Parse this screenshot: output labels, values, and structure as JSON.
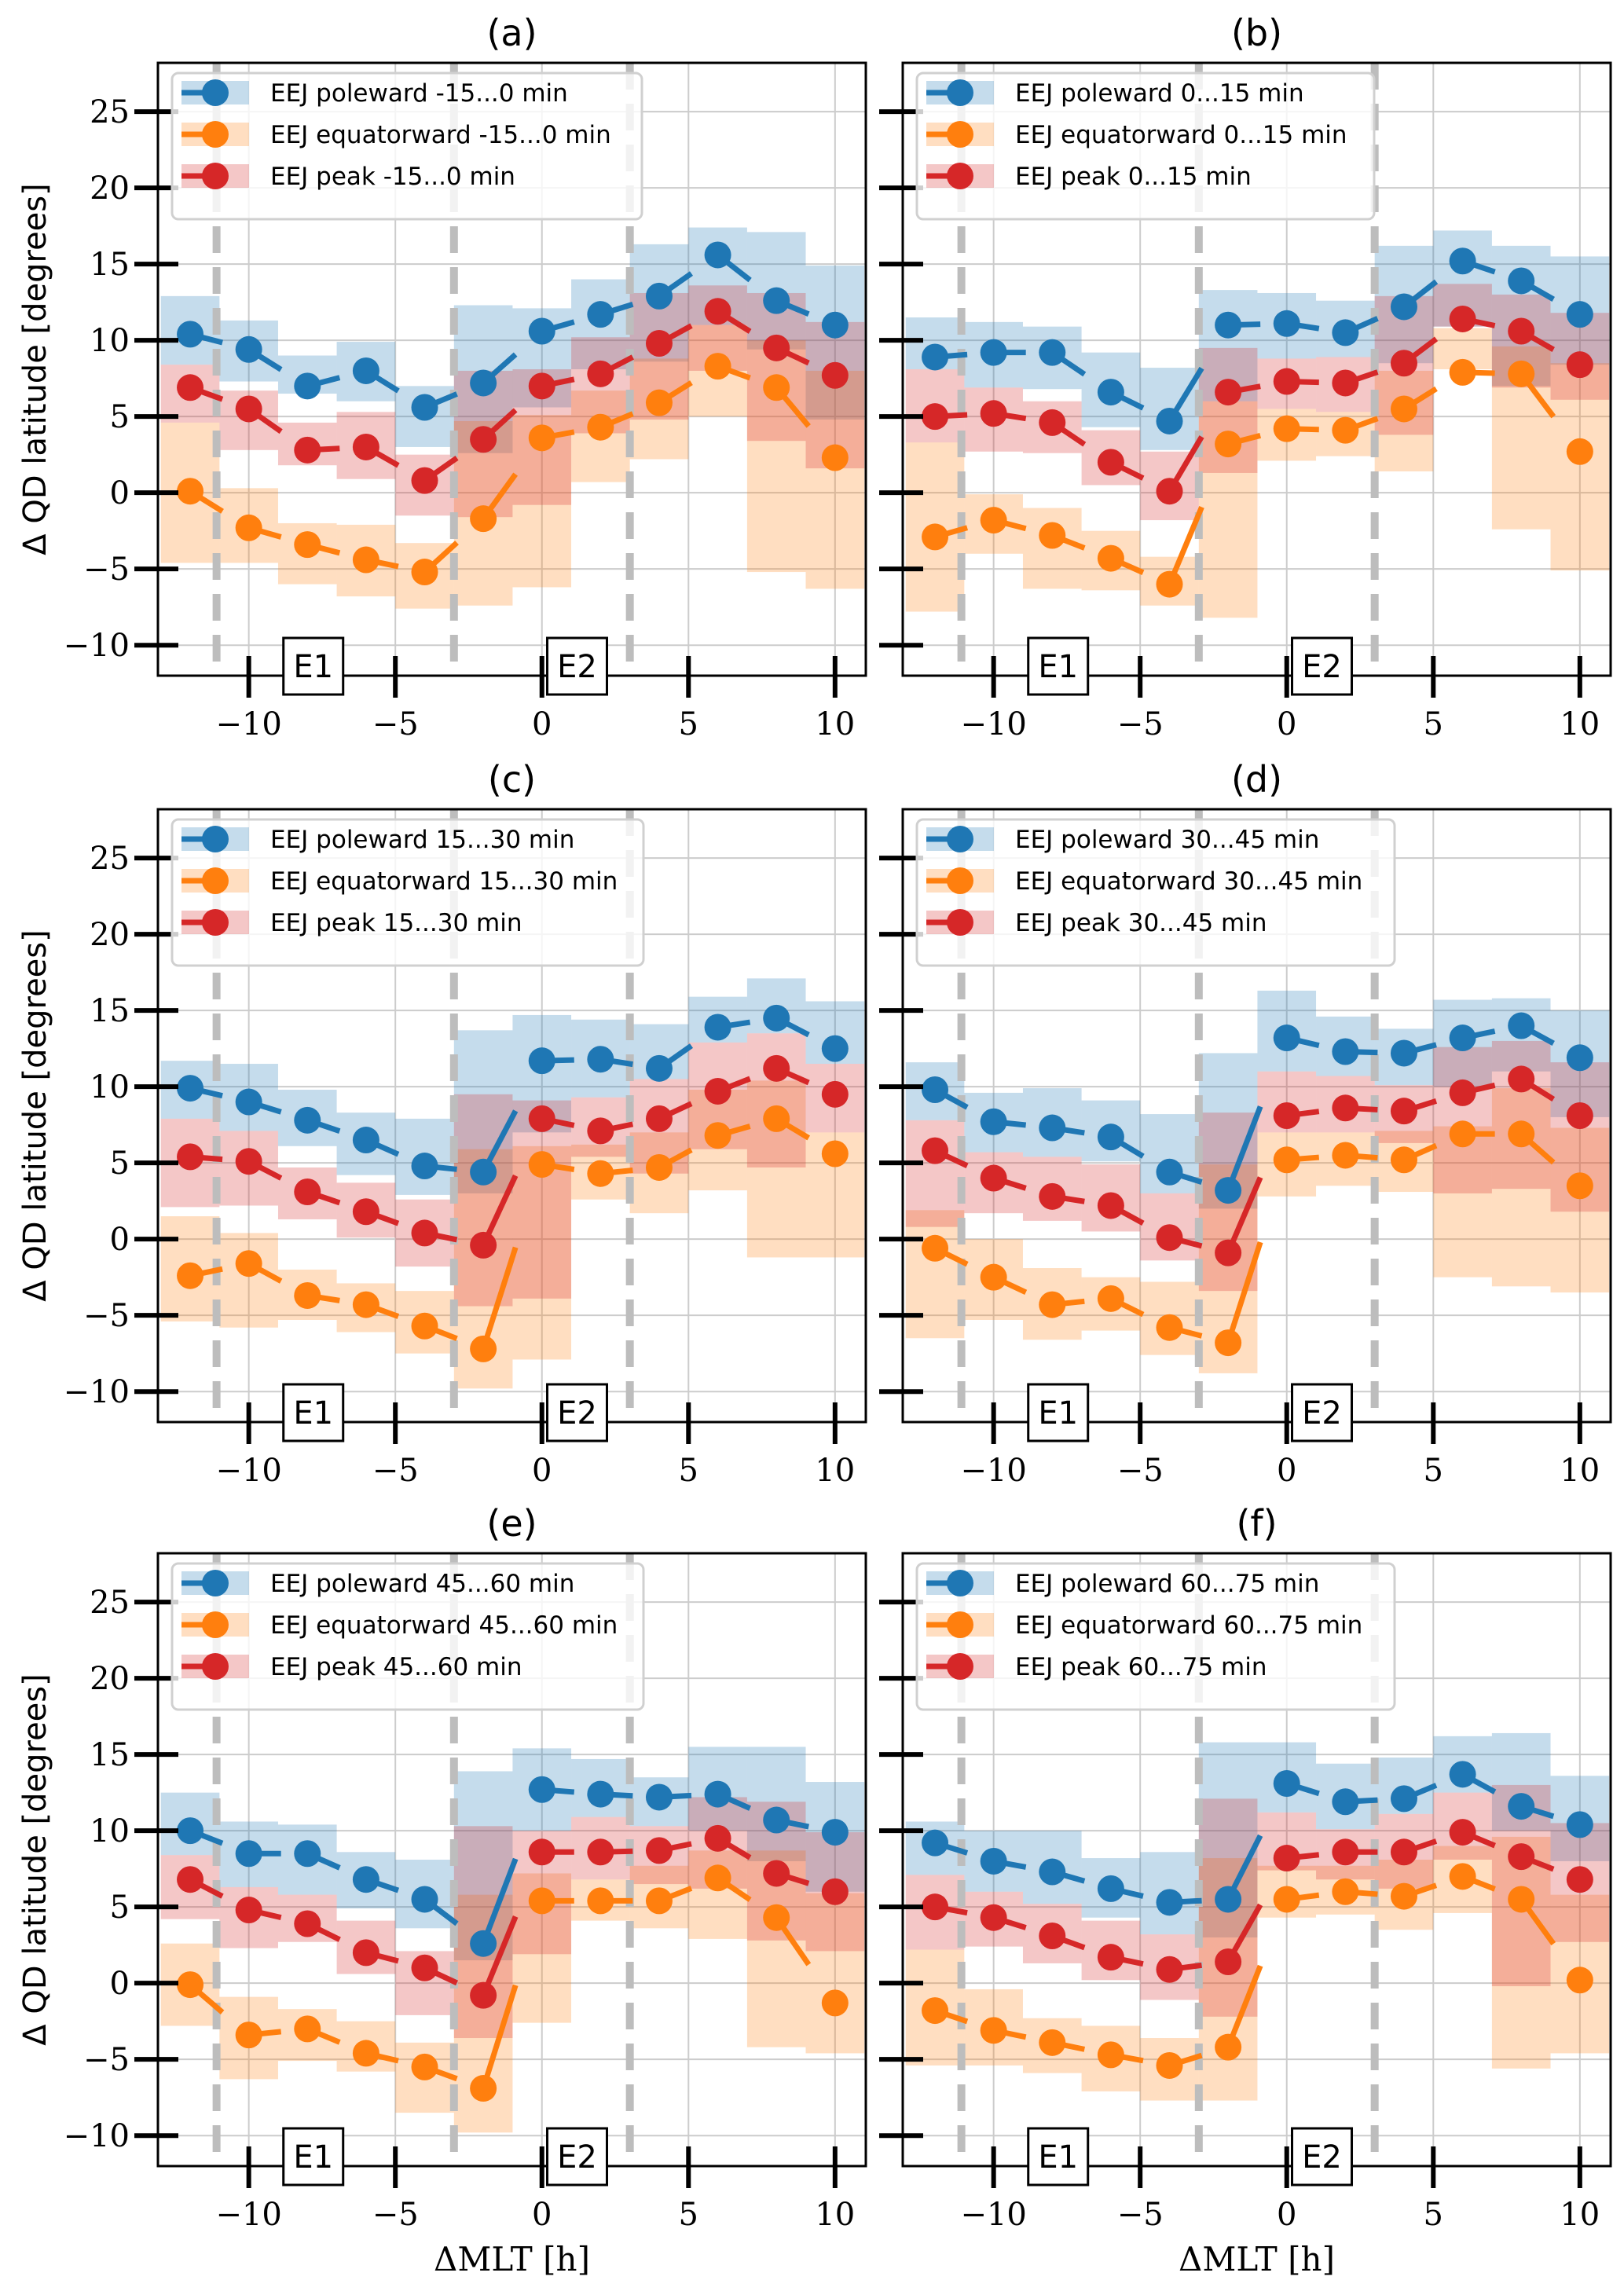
{
  "figure": {
    "xlabel": "ΔMLT [h]",
    "ylabel": "Δ QD latitude [degrees]",
    "x_tick_values": [
      -10,
      -5,
      0,
      5,
      10
    ],
    "x_tick_labels": [
      "−10",
      "−5",
      "0",
      "5",
      "10"
    ],
    "y_tick_values": [
      25,
      20,
      15,
      10,
      5,
      0,
      -5,
      -10
    ],
    "y_tick_labels": [
      "25",
      "20",
      "15",
      "10",
      "5",
      "0",
      "−5",
      "−10"
    ],
    "xlim": [
      -13.1,
      11.05
    ],
    "ylim": [
      -12,
      28.2
    ],
    "boundary_lines_x": [
      -11.1,
      -3,
      3
    ],
    "annotations": [
      {
        "text": "E1",
        "x": -7.8
      },
      {
        "text": "E2",
        "x": 1.2
      }
    ]
  },
  "colors": {
    "poleward": "#1f77b4",
    "equatorward": "#ff7f0e",
    "peak": "#d62728",
    "boundary_line": "#bdbdbd",
    "grid": "#cccccc"
  },
  "chart_data": [
    {
      "type": "line",
      "title": "(a)",
      "x": [
        -12,
        -10,
        -8,
        -6,
        -4,
        -2,
        0,
        2,
        4,
        6,
        8,
        10
      ],
      "series": [
        {
          "name": "EEJ poleward -15...0 min",
          "color": "#1f77b4",
          "values": [
            10.4,
            9.4,
            7.0,
            8.0,
            5.6,
            7.2,
            10.6,
            11.7,
            12.9,
            15.6,
            12.6,
            11.0
          ],
          "upper": [
            12.9,
            11.3,
            9.0,
            9.9,
            7.0,
            12.3,
            12.1,
            14.0,
            16.3,
            17.4,
            17.1,
            14.9
          ],
          "lower": [
            8.4,
            7.3,
            6.5,
            6.0,
            3.0,
            2.6,
            5.6,
            8.1,
            8.6,
            11.0,
            9.4,
            4.8
          ]
        },
        {
          "name": "EEJ equatorward -15...0 min",
          "color": "#ff7f0e",
          "values": [
            0.1,
            -2.3,
            -3.4,
            -4.4,
            -5.2,
            -1.7,
            3.6,
            4.3,
            5.9,
            8.3,
            6.9,
            2.3
          ],
          "upper": [
            4.6,
            0.3,
            -2.0,
            -2.1,
            -3.3,
            4.7,
            5.1,
            6.7,
            8.8,
            11.0,
            10.0,
            8.0
          ],
          "lower": [
            -4.6,
            -4.6,
            -6.0,
            -6.8,
            -7.6,
            -7.4,
            -6.2,
            0.7,
            2.2,
            5.0,
            -5.2,
            -6.3
          ]
        },
        {
          "name": "EEJ peak -15...0 min",
          "color": "#d62728",
          "values": [
            6.9,
            5.5,
            2.8,
            3.0,
            0.8,
            3.5,
            7.0,
            7.8,
            9.8,
            11.9,
            9.5,
            7.7
          ],
          "upper": [
            8.4,
            6.7,
            4.6,
            5.3,
            2.5,
            8.0,
            8.1,
            10.2,
            13.1,
            13.6,
            13.1,
            11.2
          ],
          "lower": [
            4.6,
            2.8,
            1.8,
            0.9,
            -1.5,
            -1.6,
            -0.8,
            3.9,
            4.8,
            8.0,
            3.4,
            1.6
          ]
        }
      ]
    },
    {
      "type": "line",
      "title": "(b)",
      "x": [
        -12,
        -10,
        -8,
        -6,
        -4,
        -2,
        0,
        2,
        4,
        6,
        8,
        10
      ],
      "series": [
        {
          "name": "EEJ poleward 0...15 min",
          "color": "#1f77b4",
          "values": [
            8.9,
            9.2,
            9.2,
            6.6,
            4.7,
            11.0,
            11.1,
            10.5,
            12.2,
            15.2,
            13.9,
            11.7
          ],
          "upper": [
            11.5,
            11.2,
            10.9,
            9.2,
            8.2,
            13.3,
            13.1,
            12.6,
            16.2,
            17.2,
            16.2,
            15.5
          ],
          "lower": [
            8.1,
            6.9,
            6.8,
            4.3,
            2.8,
            6.0,
            8.8,
            8.9,
            8.5,
            10.9,
            7.0,
            8.4
          ]
        },
        {
          "name": "EEJ equatorward 0...15 min",
          "color": "#ff7f0e",
          "values": [
            -2.9,
            -1.8,
            -2.8,
            -4.3,
            -6.0,
            3.2,
            4.2,
            4.1,
            5.5,
            7.9,
            7.8,
            2.7
          ],
          "upper": [
            3.3,
            -0.1,
            -1.0,
            -2.5,
            -4.2,
            6.0,
            5.5,
            5.3,
            8.0,
            10.8,
            9.6,
            8.5
          ],
          "lower": [
            -7.8,
            -4.0,
            -6.3,
            -6.4,
            -7.4,
            -8.2,
            2.1,
            2.4,
            1.4,
            8.1,
            -2.4,
            -5.1
          ]
        },
        {
          "name": "EEJ peak 0...15 min",
          "color": "#d62728",
          "values": [
            5.0,
            5.2,
            4.6,
            2.0,
            0.1,
            6.6,
            7.3,
            7.2,
            8.5,
            11.4,
            10.6,
            8.4
          ],
          "upper": [
            8.1,
            6.9,
            6.0,
            4.1,
            2.7,
            9.5,
            8.8,
            8.9,
            12.9,
            13.7,
            13.0,
            11.8
          ],
          "lower": [
            3.3,
            2.7,
            2.6,
            0.5,
            -1.8,
            1.3,
            5.5,
            5.3,
            3.8,
            10.9,
            6.9,
            6.1
          ]
        }
      ]
    },
    {
      "type": "line",
      "title": "(c)",
      "x": [
        -12,
        -10,
        -8,
        -6,
        -4,
        -2,
        0,
        2,
        4,
        6,
        8,
        10
      ],
      "series": [
        {
          "name": "EEJ poleward 15...30 min",
          "color": "#1f77b4",
          "values": [
            9.9,
            9.0,
            7.8,
            6.5,
            4.8,
            4.4,
            11.7,
            11.8,
            11.2,
            13.9,
            14.5,
            12.5
          ],
          "upper": [
            11.7,
            11.5,
            9.8,
            8.3,
            7.9,
            13.7,
            14.7,
            14.4,
            14.1,
            15.9,
            17.1,
            15.6
          ],
          "lower": [
            7.9,
            7.1,
            6.1,
            4.2,
            2.9,
            3.0,
            7.0,
            9.3,
            10.5,
            12.9,
            13.5,
            11.5
          ]
        },
        {
          "name": "EEJ equatorward 15...30 min",
          "color": "#ff7f0e",
          "values": [
            -2.4,
            -1.6,
            -3.7,
            -4.3,
            -5.7,
            -7.2,
            4.9,
            4.3,
            4.7,
            6.8,
            7.9,
            5.6
          ],
          "upper": [
            1.5,
            0.4,
            -2.0,
            -2.9,
            -3.4,
            5.9,
            6.1,
            6.2,
            7.0,
            9.8,
            10.4,
            7.0
          ],
          "lower": [
            -5.4,
            -5.8,
            -5.3,
            -6.1,
            -7.5,
            -9.8,
            -7.9,
            2.6,
            1.7,
            3.2,
            -1.2,
            -1.2
          ]
        },
        {
          "name": "EEJ peak 15...30 min",
          "color": "#d62728",
          "values": [
            5.4,
            5.1,
            3.1,
            1.8,
            0.4,
            -0.4,
            7.9,
            7.1,
            7.9,
            9.7,
            11.2,
            9.5
          ],
          "upper": [
            7.9,
            7.1,
            4.7,
            3.7,
            2.6,
            9.5,
            9.1,
            9.3,
            10.5,
            12.9,
            13.5,
            11.5
          ],
          "lower": [
            2.1,
            2.2,
            1.3,
            0.1,
            -1.8,
            -4.4,
            -3.9,
            5.4,
            4.3,
            5.9,
            4.7,
            7.0
          ]
        }
      ]
    },
    {
      "type": "line",
      "title": "(d)",
      "x": [
        -12,
        -10,
        -8,
        -6,
        -4,
        -2,
        0,
        2,
        4,
        6,
        8,
        10
      ],
      "series": [
        {
          "name": "EEJ poleward 30...45 min",
          "color": "#1f77b4",
          "values": [
            9.8,
            7.7,
            7.3,
            6.7,
            4.4,
            3.2,
            13.2,
            12.3,
            12.2,
            13.2,
            14.0,
            11.9
          ],
          "upper": [
            11.6,
            9.6,
            9.9,
            9.1,
            8.2,
            12.2,
            16.3,
            14.6,
            13.8,
            15.7,
            15.8,
            15.0
          ],
          "lower": [
            7.8,
            5.7,
            5.4,
            5.1,
            3.0,
            2.0,
            11.0,
            10.7,
            10.1,
            10.0,
            11.0,
            8.0
          ]
        },
        {
          "name": "EEJ equatorward 30...45 min",
          "color": "#ff7f0e",
          "values": [
            -0.6,
            -2.5,
            -4.3,
            -3.9,
            -5.8,
            -6.8,
            5.2,
            5.5,
            5.2,
            6.9,
            6.9,
            3.5
          ],
          "upper": [
            1.9,
            0.0,
            -1.9,
            -2.5,
            -2.8,
            4.9,
            7.0,
            7.0,
            7.1,
            7.4,
            9.9,
            7.3
          ],
          "lower": [
            -6.5,
            -5.3,
            -6.6,
            -6.0,
            -7.6,
            -8.8,
            2.8,
            3.5,
            3.1,
            -2.5,
            -3.1,
            -3.5
          ]
        },
        {
          "name": "EEJ peak 30...45 min",
          "color": "#d62728",
          "values": [
            5.8,
            4.0,
            2.8,
            2.2,
            0.1,
            -0.9,
            8.1,
            8.6,
            8.4,
            9.6,
            10.5,
            8.1
          ],
          "upper": [
            7.8,
            5.7,
            5.4,
            4.9,
            3.0,
            8.3,
            11.0,
            10.7,
            10.1,
            12.6,
            13.0,
            11.6
          ],
          "lower": [
            0.8,
            1.7,
            1.2,
            0.5,
            -1.4,
            -3.4,
            7.0,
            7.0,
            6.3,
            3.0,
            3.3,
            1.8
          ]
        }
      ]
    },
    {
      "type": "line",
      "title": "(e)",
      "x": [
        -12,
        -10,
        -8,
        -6,
        -4,
        -2,
        0,
        2,
        4,
        6,
        8,
        10
      ],
      "series": [
        {
          "name": "EEJ poleward 45...60 min",
          "color": "#1f77b4",
          "values": [
            10.0,
            8.5,
            8.5,
            6.8,
            5.5,
            2.6,
            12.7,
            12.4,
            12.2,
            12.4,
            10.7,
            9.9
          ],
          "upper": [
            12.5,
            10.6,
            10.4,
            8.6,
            8.1,
            13.9,
            15.4,
            14.7,
            13.5,
            15.5,
            15.5,
            13.2
          ],
          "lower": [
            8.4,
            6.3,
            5.8,
            4.9,
            3.6,
            1.5,
            10.0,
            10.9,
            10.3,
            10.0,
            8.0,
            6.0
          ]
        },
        {
          "name": "EEJ equatorward 45...60 min",
          "color": "#ff7f0e",
          "values": [
            -0.1,
            -3.4,
            -3.0,
            -4.6,
            -5.5,
            -6.9,
            5.4,
            5.4,
            5.4,
            6.9,
            4.3,
            -1.3
          ],
          "upper": [
            2.6,
            -0.9,
            -1.7,
            -2.5,
            -3.9,
            5.8,
            7.2,
            6.8,
            7.7,
            8.7,
            8.7,
            5.9
          ],
          "lower": [
            -2.8,
            -6.3,
            -5.1,
            -5.8,
            -8.5,
            -9.8,
            -2.6,
            4.1,
            3.6,
            2.9,
            -4.2,
            -4.6
          ]
        },
        {
          "name": "EEJ peak 45...60 min",
          "color": "#d62728",
          "values": [
            6.8,
            4.8,
            3.9,
            2.0,
            1.0,
            -0.8,
            8.6,
            8.6,
            8.7,
            9.5,
            7.2,
            6.0
          ],
          "upper": [
            8.4,
            6.3,
            5.8,
            4.1,
            2.1,
            10.3,
            10.0,
            10.9,
            10.3,
            12.2,
            11.9,
            9.9
          ],
          "lower": [
            4.2,
            2.3,
            2.7,
            0.6,
            -2.1,
            -3.6,
            1.9,
            6.8,
            6.5,
            6.2,
            2.8,
            2.1
          ]
        }
      ]
    },
    {
      "type": "line",
      "title": "(f)",
      "x": [
        -12,
        -10,
        -8,
        -6,
        -4,
        -2,
        0,
        2,
        4,
        6,
        8,
        10
      ],
      "series": [
        {
          "name": "EEJ poleward 60...75 min",
          "color": "#1f77b4",
          "values": [
            9.2,
            8.0,
            7.3,
            6.2,
            5.3,
            5.5,
            13.1,
            11.9,
            12.1,
            13.7,
            11.6,
            10.4
          ],
          "upper": [
            10.6,
            10.0,
            10.0,
            8.2,
            8.6,
            15.8,
            15.8,
            14.4,
            14.8,
            16.2,
            16.4,
            13.6
          ],
          "lower": [
            7.1,
            6.0,
            5.2,
            4.3,
            3.2,
            3.0,
            11.2,
            10.1,
            11.1,
            12.5,
            10.0,
            8.0
          ]
        },
        {
          "name": "EEJ equatorward 60...75 min",
          "color": "#ff7f0e",
          "values": [
            -1.8,
            -3.1,
            -3.9,
            -4.7,
            -5.4,
            -4.2,
            5.5,
            6.0,
            5.7,
            7.0,
            5.5,
            0.2
          ],
          "upper": [
            2.2,
            -0.4,
            -2.3,
            -2.8,
            -3.6,
            8.2,
            7.7,
            7.7,
            8.1,
            9.0,
            9.6,
            5.8
          ],
          "lower": [
            -5.4,
            -5.4,
            -5.9,
            -7.1,
            -7.7,
            -7.7,
            4.3,
            4.5,
            3.5,
            4.6,
            -5.6,
            -4.6
          ]
        },
        {
          "name": "EEJ peak 60...75 min",
          "color": "#d62728",
          "values": [
            5.0,
            4.3,
            3.1,
            1.7,
            0.9,
            1.4,
            8.2,
            8.6,
            8.6,
            9.9,
            8.3,
            6.8
          ],
          "upper": [
            7.1,
            6.0,
            5.2,
            4.1,
            3.2,
            12.1,
            11.2,
            10.1,
            11.1,
            12.5,
            13.0,
            10.5
          ],
          "lower": [
            2.2,
            2.4,
            1.3,
            0.2,
            -1.1,
            -2.2,
            7.4,
            6.8,
            6.2,
            8.1,
            -0.2,
            2.7
          ]
        }
      ]
    }
  ]
}
